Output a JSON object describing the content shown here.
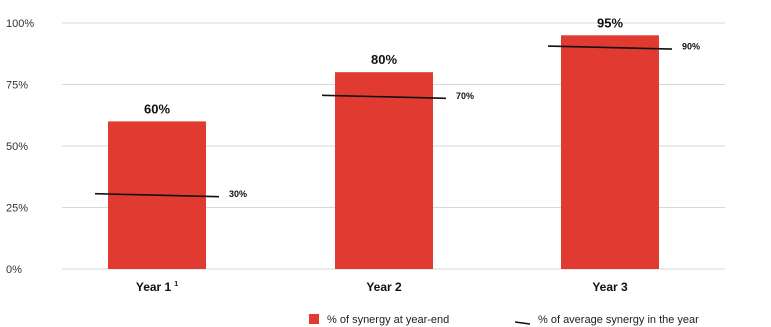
{
  "chart_data": {
    "type": "bar",
    "categories": [
      "Year 1",
      "Year 2",
      "Year 3"
    ],
    "category_footnotes": [
      "1",
      "",
      ""
    ],
    "series": [
      {
        "name": "% of synergy at year-end",
        "values": [
          60,
          80,
          95
        ],
        "labels": [
          "60%",
          "80%",
          "95%"
        ],
        "color": "#e03a31"
      },
      {
        "name": "% of average synergy in the year",
        "values": [
          30,
          70,
          90
        ],
        "labels": [
          "30%",
          "70%",
          "90%"
        ],
        "color": "#111111"
      }
    ],
    "yticks": [
      "0%",
      "25%",
      "50%",
      "75%",
      "100%"
    ],
    "ytick_values": [
      0,
      25,
      50,
      75,
      100
    ],
    "ylim": [
      0,
      100
    ],
    "grid": true,
    "legend_position": "bottom-right"
  }
}
